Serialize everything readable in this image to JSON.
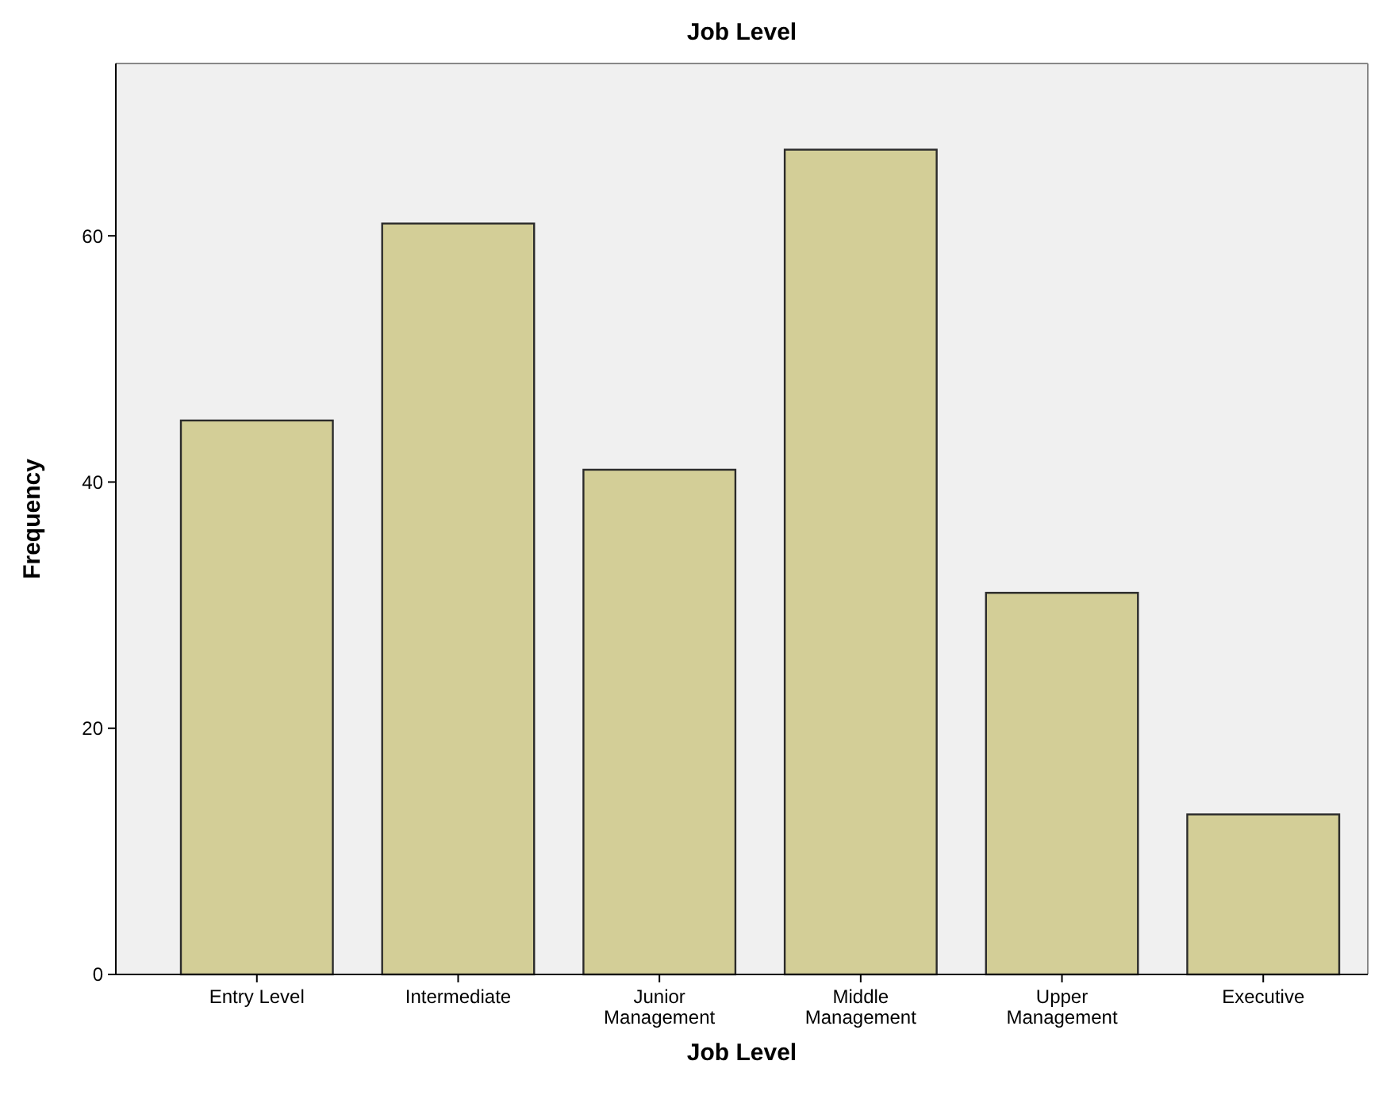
{
  "chart_data": {
    "type": "bar",
    "title": "Job Level",
    "xlabel": "Job Level",
    "ylabel": "Frequency",
    "categories": [
      "Entry Level",
      "Intermediate",
      "Junior Management",
      "Middle Management",
      "Upper Management",
      "Executive"
    ],
    "values": [
      45,
      61,
      41,
      67,
      31,
      13
    ],
    "color": "#d3ce97",
    "ylim": [
      0,
      74
    ],
    "yticks": [
      0,
      20,
      40,
      60
    ],
    "grid": false
  }
}
